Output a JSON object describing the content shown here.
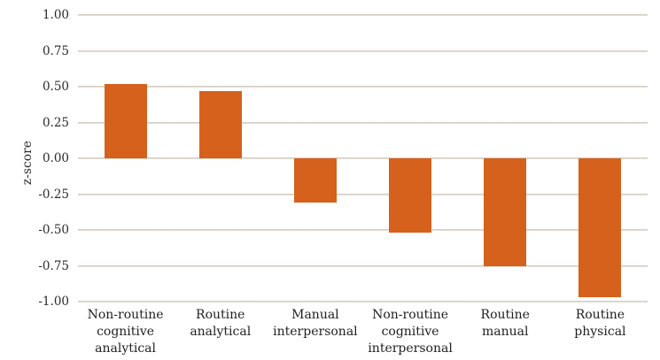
{
  "chart_data": {
    "type": "bar",
    "title": "",
    "xlabel": "",
    "ylabel": "z-score",
    "categories": [
      "Non-routine cognitive analytical",
      "Routine analytical",
      "Manual interpersonal",
      "Non-routine cognitive interpersonal",
      "Routine manual",
      "Routine physical"
    ],
    "values": [
      0.52,
      0.47,
      -0.31,
      -0.52,
      -0.75,
      -0.97
    ],
    "ylim": [
      -1.0,
      1.0
    ],
    "ytick_values": [
      1.0,
      0.75,
      0.5,
      0.25,
      0.0,
      -0.25,
      -0.5,
      -0.75,
      -1.0
    ],
    "ytick_labels": [
      "1.00",
      "0.75",
      "0.50",
      "0.25",
      "0.00",
      "-0.25",
      "-0.50",
      "-0.75",
      "-1.00"
    ],
    "grid": "horizontal",
    "legend": "none"
  },
  "colors": {
    "bar": "#d5611c",
    "gridline": "#d3ccc1",
    "text": "#2b2b2b",
    "background": "#ffffff"
  }
}
